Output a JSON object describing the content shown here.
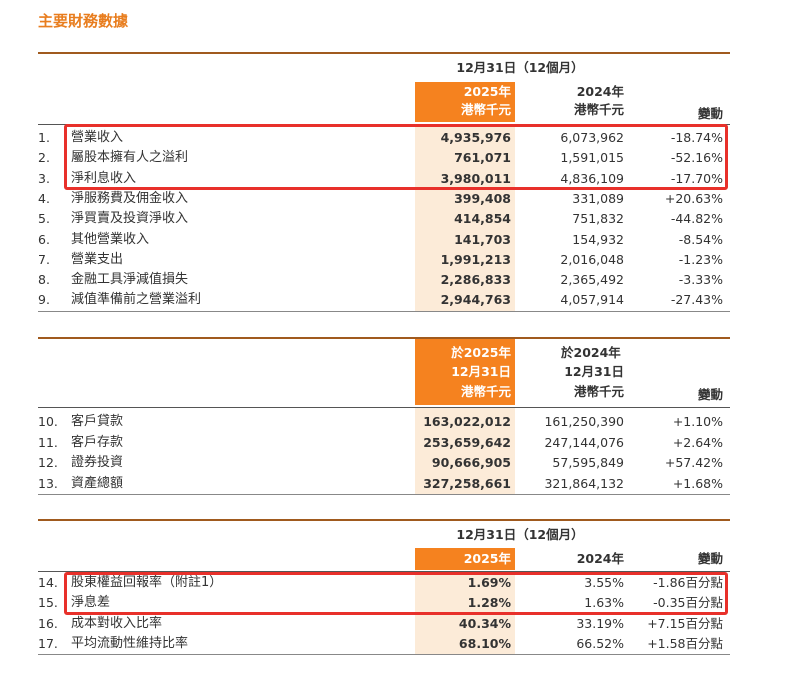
{
  "title": "主要財務數據",
  "colors": {
    "accent": "#f5821f",
    "highlight": "#fcebd8",
    "annotation_box": "#e8302a"
  },
  "table1": {
    "period_header": "12月31日（12個月）",
    "col_2025": [
      "2025年",
      "港幣千元"
    ],
    "col_2024": [
      "2024年",
      "港幣千元"
    ],
    "col_change": "變動",
    "rows": [
      {
        "no": "1.",
        "label": "營業收入",
        "v2025": "4,935,976",
        "v2024": "6,073,962",
        "change": "-18.74%"
      },
      {
        "no": "2.",
        "label": "屬股本擁有人之溢利",
        "v2025": "761,071",
        "v2024": "1,591,015",
        "change": "-52.16%"
      },
      {
        "no": "3.",
        "label": "淨利息收入",
        "v2025": "3,980,011",
        "v2024": "4,836,109",
        "change": "-17.70%"
      },
      {
        "no": "4.",
        "label": "淨服務費及佣金收入",
        "v2025": "399,408",
        "v2024": "331,089",
        "change": "+20.63%"
      },
      {
        "no": "5.",
        "label": "淨買賣及投資淨收入",
        "v2025": "414,854",
        "v2024": "751,832",
        "change": "-44.82%"
      },
      {
        "no": "6.",
        "label": "其他營業收入",
        "v2025": "141,703",
        "v2024": "154,932",
        "change": "-8.54%"
      },
      {
        "no": "7.",
        "label": "營業支出",
        "v2025": "1,991,213",
        "v2024": "2,016,048",
        "change": "-1.23%"
      },
      {
        "no": "8.",
        "label": "金融工具淨減值損失",
        "v2025": "2,286,833",
        "v2024": "2,365,492",
        "change": "-3.33%"
      },
      {
        "no": "9.",
        "label": "減值準備前之營業溢利",
        "v2025": "2,944,763",
        "v2024": "4,057,914",
        "change": "-27.43%"
      }
    ]
  },
  "table2": {
    "col_2025": [
      "於2025年",
      "12月31日",
      "港幣千元"
    ],
    "col_2024": [
      "於2024年",
      "12月31日",
      "港幣千元"
    ],
    "col_change": "變動",
    "rows": [
      {
        "no": "10.",
        "label": "客戶貸款",
        "v2025": "163,022,012",
        "v2024": "161,250,390",
        "change": "+1.10%"
      },
      {
        "no": "11.",
        "label": "客戶存款",
        "v2025": "253,659,642",
        "v2024": "247,144,076",
        "change": "+2.64%"
      },
      {
        "no": "12.",
        "label": "證券投資",
        "v2025": "90,666,905",
        "v2024": "57,595,849",
        "change": "+57.42%"
      },
      {
        "no": "13.",
        "label": "資產總額",
        "v2025": "327,258,661",
        "v2024": "321,864,132",
        "change": "+1.68%"
      }
    ]
  },
  "table3": {
    "period_header": "12月31日（12個月）",
    "col_2025": "2025年",
    "col_2024": "2024年",
    "col_change": "變動",
    "rows": [
      {
        "no": "14.",
        "label": "股東權益回報率（附註1）",
        "v2025": "1.69%",
        "v2024": "3.55%",
        "change": "-1.86百分點"
      },
      {
        "no": "15.",
        "label": "淨息差",
        "v2025": "1.28%",
        "v2024": "1.63%",
        "change": "-0.35百分點"
      },
      {
        "no": "16.",
        "label": "成本對收入比率",
        "v2025": "40.34%",
        "v2024": "33.19%",
        "change": "+7.15百分點"
      },
      {
        "no": "17.",
        "label": "平均流動性維持比率",
        "v2025": "68.10%",
        "v2024": "66.52%",
        "change": "+1.58百分點"
      }
    ]
  }
}
